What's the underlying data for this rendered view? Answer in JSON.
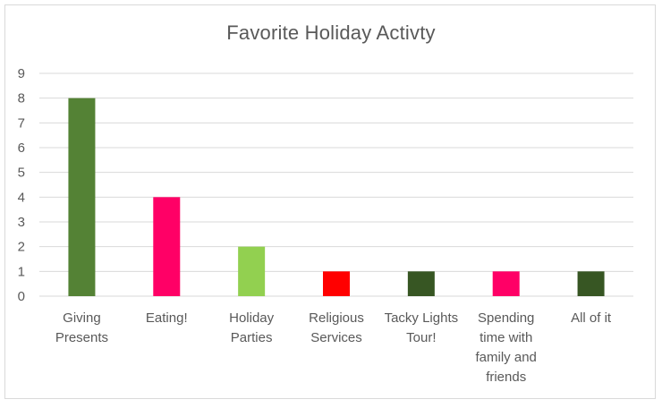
{
  "chart_data": {
    "type": "bar",
    "title": "Favorite Holiday Activty",
    "xlabel": "",
    "ylabel": "",
    "ylim": [
      0,
      9
    ],
    "yticks": [
      0,
      1,
      2,
      3,
      4,
      5,
      6,
      7,
      8,
      9
    ],
    "grid": true,
    "legend": "none",
    "categories": [
      [
        "Giving",
        "Presents"
      ],
      [
        "Eating!"
      ],
      [
        "Holiday",
        "Parties"
      ],
      [
        "Religious",
        "Services"
      ],
      [
        "Tacky Lights",
        "Tour!"
      ],
      [
        "Spending",
        "time with",
        "family and",
        "friends"
      ],
      [
        "All of it"
      ]
    ],
    "values": [
      8,
      4,
      2,
      1,
      1,
      1,
      1
    ],
    "colors": [
      "#548235",
      "#ff0066",
      "#92d050",
      "#ff0000",
      "#375623",
      "#ff0066",
      "#375623"
    ]
  }
}
